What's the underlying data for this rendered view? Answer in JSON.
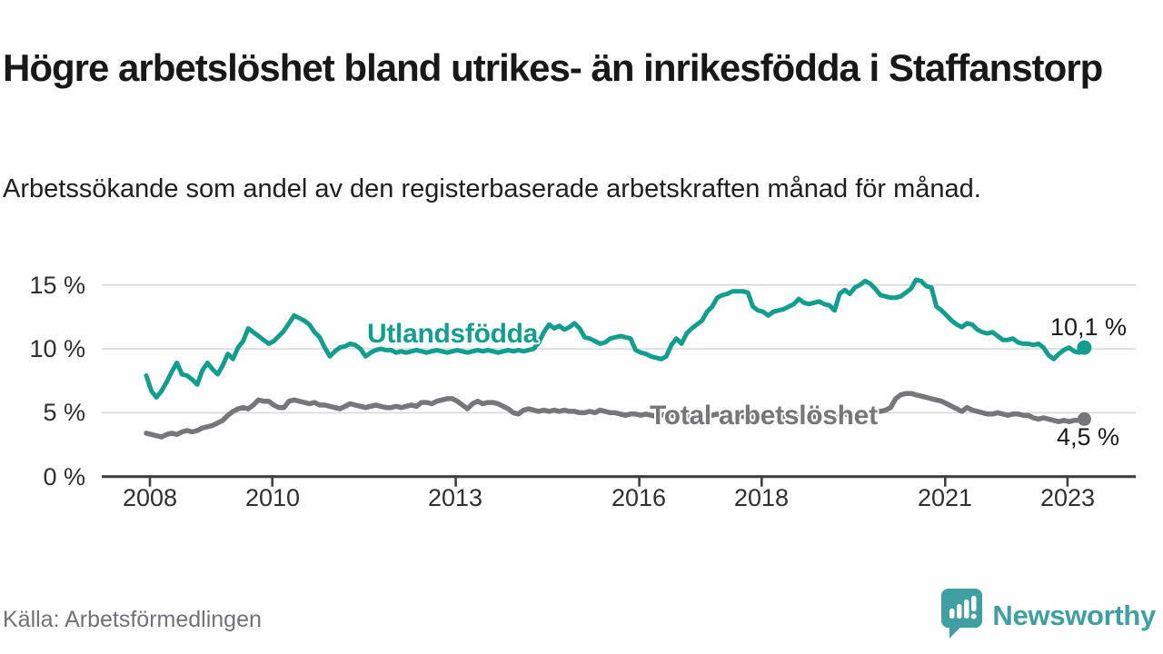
{
  "header": {
    "title": "Högre arbetslöshet bland utrikes- än inrikesfödda i Staffanstorp",
    "subtitle": "Arbetssökande som andel av den registerbaserade arbetskraften månad för månad."
  },
  "footer": {
    "source": "Källa: Arbetsförmedlingen",
    "brand": "Newsworthy"
  },
  "colors": {
    "accent_teal": "#119e8e",
    "line_gray": "#77777b",
    "gridline": "#d9d9d9",
    "axis": "#3f3f3f",
    "title_text": "#181818",
    "tick_text": "#2f2f2f",
    "end_label_text": "#1a1a1a",
    "source_text": "#71717a",
    "brand_teal": "#3f9fa1",
    "background": "#ffffff"
  },
  "chart_data": {
    "type": "line",
    "title": "Högre arbetslöshet bland utrikes- än inrikesfödda i Staffanstorp",
    "subtitle": "Arbetssökande som andel av den registerbaserade arbetskraften månad för månad.",
    "unit": "%",
    "frequency": "monthly",
    "x_start": "2008-01",
    "x_end": "2023-05",
    "grid": "horizontal",
    "ylim": [
      0,
      16
    ],
    "y_ticks": [
      "15 %",
      "10 %",
      "5 %",
      "0 %"
    ],
    "y_tick_values": [
      15,
      10,
      5,
      0
    ],
    "x_ticks": [
      "2008",
      "2010",
      "2013",
      "2016",
      "2018",
      "2021",
      "2023"
    ],
    "x_tick_years": [
      2008,
      2010,
      2013,
      2016,
      2018,
      2021,
      2023
    ],
    "series": [
      {
        "name": "Utlandsfödda",
        "color": "#119e8e",
        "end_label": "10,1 %",
        "end_value": 10.1,
        "values": [
          7.9,
          6.7,
          6.2,
          6.7,
          7.4,
          8.2,
          8.9,
          8.0,
          7.9,
          7.6,
          7.2,
          8.3,
          8.9,
          8.4,
          8.0,
          8.7,
          9.6,
          9.2,
          10.1,
          10.6,
          11.6,
          11.3,
          11.0,
          10.7,
          10.4,
          10.6,
          11.0,
          11.4,
          12.0,
          12.6,
          12.4,
          12.2,
          11.9,
          11.3,
          10.9,
          10.1,
          9.4,
          9.8,
          10.1,
          10.2,
          10.4,
          10.3,
          10.0,
          9.4,
          9.7,
          9.9,
          10.0,
          9.9,
          9.9,
          9.7,
          9.8,
          9.7,
          9.8,
          9.9,
          9.8,
          9.7,
          9.8,
          9.9,
          9.8,
          9.7,
          9.8,
          9.9,
          9.8,
          9.7,
          9.8,
          9.9,
          9.8,
          9.9,
          9.8,
          9.7,
          9.8,
          9.9,
          9.8,
          9.9,
          9.8,
          9.9,
          10.0,
          10.5,
          11.3,
          11.9,
          11.6,
          11.8,
          11.5,
          11.7,
          12.0,
          11.6,
          10.9,
          10.8,
          10.6,
          10.4,
          10.5,
          10.8,
          10.9,
          11.0,
          10.9,
          10.8,
          9.9,
          9.7,
          9.6,
          9.4,
          9.3,
          9.2,
          9.4,
          10.3,
          10.8,
          10.4,
          11.2,
          11.6,
          11.9,
          12.2,
          12.9,
          13.3,
          14.0,
          14.2,
          14.3,
          14.5,
          14.5,
          14.5,
          14.4,
          13.3,
          13.0,
          12.9,
          12.6,
          12.9,
          13.0,
          13.1,
          13.3,
          13.5,
          13.9,
          13.6,
          13.5,
          13.6,
          13.7,
          13.5,
          13.4,
          13.0,
          14.3,
          14.6,
          14.3,
          14.8,
          15.0,
          15.3,
          15.1,
          14.7,
          14.2,
          14.1,
          14.0,
          14.0,
          14.1,
          14.4,
          14.7,
          15.4,
          15.3,
          14.9,
          14.8,
          13.3,
          13.0,
          12.6,
          12.2,
          11.9,
          11.7,
          12.0,
          11.9,
          11.5,
          11.3,
          11.2,
          11.3,
          11.0,
          10.7,
          10.7,
          10.8,
          10.5,
          10.4,
          10.4,
          10.3,
          10.4,
          10.1,
          9.5,
          9.2,
          9.6,
          9.9,
          10.1,
          9.8,
          9.7,
          10.1
        ]
      },
      {
        "name": "Total arbetslöshet",
        "color": "#77777b",
        "end_label": "4,5 %",
        "end_value": 4.5,
        "values": [
          3.4,
          3.3,
          3.2,
          3.1,
          3.3,
          3.4,
          3.3,
          3.5,
          3.6,
          3.5,
          3.6,
          3.8,
          3.9,
          4.0,
          4.2,
          4.4,
          4.8,
          5.1,
          5.3,
          5.4,
          5.3,
          5.6,
          6.0,
          5.9,
          5.9,
          5.6,
          5.4,
          5.4,
          5.9,
          6.0,
          5.9,
          5.8,
          5.7,
          5.8,
          5.6,
          5.6,
          5.5,
          5.4,
          5.3,
          5.5,
          5.7,
          5.6,
          5.5,
          5.4,
          5.5,
          5.6,
          5.5,
          5.4,
          5.4,
          5.5,
          5.4,
          5.5,
          5.6,
          5.5,
          5.8,
          5.8,
          5.7,
          5.9,
          6.0,
          6.1,
          6.1,
          5.9,
          5.6,
          5.3,
          5.7,
          5.9,
          5.7,
          5.8,
          5.8,
          5.7,
          5.5,
          5.3,
          5.0,
          4.9,
          5.2,
          5.3,
          5.2,
          5.1,
          5.2,
          5.1,
          5.2,
          5.1,
          5.2,
          5.1,
          5.1,
          5.0,
          5.0,
          5.1,
          5.0,
          5.2,
          5.1,
          5.0,
          5.0,
          4.9,
          4.8,
          4.9,
          4.9,
          4.8,
          4.9,
          4.8,
          4.7,
          4.8,
          4.9,
          4.8,
          4.7,
          4.8,
          4.7,
          4.8,
          4.7,
          4.8,
          4.7,
          4.8,
          4.9,
          4.8,
          4.7,
          4.8,
          4.8,
          4.7,
          4.8,
          4.7,
          4.8,
          4.7,
          4.8,
          4.9,
          4.8,
          4.7,
          4.8,
          4.7,
          4.8,
          4.9,
          4.8,
          4.7,
          4.7,
          4.8,
          4.7,
          4.8,
          4.8,
          4.9,
          4.8,
          4.9,
          5.0,
          4.9,
          5.0,
          5.1,
          5.1,
          5.2,
          5.4,
          6.1,
          6.4,
          6.5,
          6.5,
          6.4,
          6.3,
          6.2,
          6.1,
          6.0,
          5.9,
          5.7,
          5.5,
          5.3,
          5.1,
          5.4,
          5.2,
          5.1,
          5.0,
          4.9,
          4.9,
          5.0,
          4.9,
          4.8,
          4.9,
          4.9,
          4.8,
          4.8,
          4.6,
          4.5,
          4.6,
          4.5,
          4.4,
          4.3,
          4.4,
          4.3,
          4.4,
          4.4,
          4.5
        ]
      }
    ]
  }
}
